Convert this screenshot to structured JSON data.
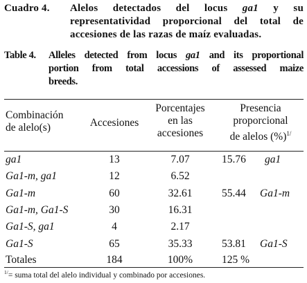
{
  "caption_es": {
    "label": "Cuadro 4.",
    "line1": "Alelos detectados del locus ga1 y su",
    "line2": "representatividad proporcional del total de",
    "line3": "accesiones de las razas de maíz evaluadas."
  },
  "caption_en": {
    "label": "Table 4.",
    "line1": "Alleles detected from locus ga1 and its proportional",
    "line2": "portion from total accessions of assessed maize",
    "line3": "breeds."
  },
  "header": {
    "combo_l1": "Combinación",
    "combo_l2": "de alelo(s)",
    "accesiones": "Accesiones",
    "pct_l1": "Porcentajes",
    "pct_l2": "en las",
    "pct_l3": "accesiones",
    "pres_l1": "Presencia",
    "pres_l2": "proporcional",
    "pres_l3": "de alelos (%)",
    "pres_sup": "1/"
  },
  "rows": [
    {
      "combo": "ga1",
      "acc": "13",
      "pct": "7.07",
      "pres": "15.76",
      "allele": "ga1"
    },
    {
      "combo": "Ga1-m, ga1",
      "acc": "12",
      "pct": "6.52",
      "pres": "",
      "allele": ""
    },
    {
      "combo": "Ga1-m",
      "acc": "60",
      "pct": "32.61",
      "pres": "55.44",
      "allele": "Ga1-m"
    },
    {
      "combo": "Ga1-m, Ga1-S",
      "acc": "30",
      "pct": "16.31",
      "pres": "",
      "allele": ""
    },
    {
      "combo": "Ga1-S, ga1",
      "acc": "4",
      "pct": "2.17",
      "pres": "",
      "allele": ""
    },
    {
      "combo": "Ga1-S",
      "acc": "65",
      "pct": "35.33",
      "pres": "53.81",
      "allele": "Ga1-S"
    }
  ],
  "totals": {
    "label": "Totales",
    "acc": "184",
    "pct": "100%",
    "pres": "125 %"
  },
  "footnote": {
    "sup": "1/",
    "text": "= suma total del alelo individual y combinado por accesiones."
  }
}
